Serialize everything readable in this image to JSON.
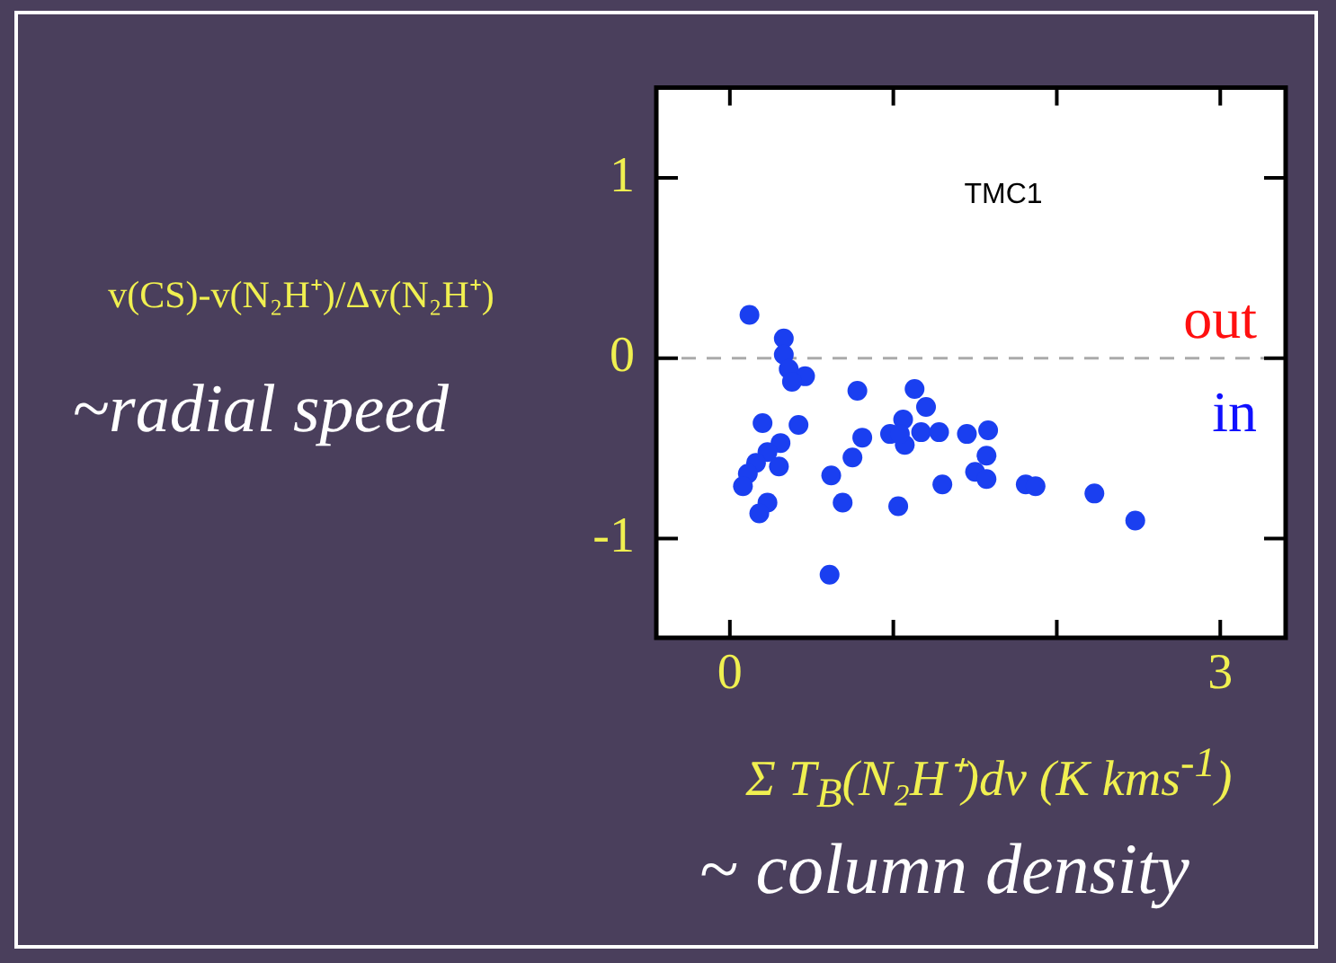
{
  "chart_data": {
    "type": "scatter",
    "title": "TMC1",
    "xlabel": "Σ T$_{B}$(N₂H⁺)dv (K kms$^{-1}$)",
    "ylabel": "v(CS)-v(N₂H⁺)/Δv(N₂H⁺)",
    "annotations": [
      "out",
      "in",
      "~radial speed",
      "~ column density"
    ],
    "series": [
      {
        "color": "#1a3ff0",
        "x": [
          0.12,
          0.33,
          0.33,
          0.36,
          0.46,
          0.38,
          0.78,
          1.13,
          1.2,
          0.2,
          0.42,
          0.31,
          0.23,
          0.16,
          0.3,
          0.11,
          0.08,
          0.23,
          0.18,
          0.81,
          0.75,
          0.62,
          0.69,
          0.61,
          0.98,
          1.06,
          1.07,
          1.04,
          1.17,
          1.28,
          1.03,
          1.3,
          1.45,
          1.58,
          1.57,
          1.5,
          1.57,
          1.81,
          1.87,
          2.23,
          2.48
        ],
        "values": [
          0.24,
          0.11,
          0.02,
          -0.06,
          -0.1,
          -0.13,
          -0.18,
          -0.17,
          -0.27,
          -0.36,
          -0.37,
          -0.47,
          -0.52,
          -0.58,
          -0.6,
          -0.64,
          -0.71,
          -0.8,
          -0.86,
          -0.44,
          -0.55,
          -0.65,
          -0.8,
          -1.2,
          -0.42,
          -0.34,
          -0.48,
          -0.42,
          -0.41,
          -0.41,
          -0.82,
          -0.7,
          -0.42,
          -0.4,
          -0.54,
          -0.63,
          -0.67,
          -0.7,
          -0.71,
          -0.75,
          -0.9
        ]
      }
    ],
    "xlim": [
      -0.45,
      3.4
    ],
    "ylim": [
      -1.55,
      1.5
    ],
    "xticks": [
      0,
      {
        "value": 1,
        "label": null
      },
      {
        "value": 2,
        "label": null
      },
      3
    ],
    "yticks": [
      -1,
      0,
      1
    ],
    "ref_lines": [
      {
        "axis": "y",
        "value": 0,
        "color": "#aaaaaa",
        "line_style": "dashed"
      }
    ],
    "marker": "circle",
    "grid": false,
    "legend": false
  }
}
